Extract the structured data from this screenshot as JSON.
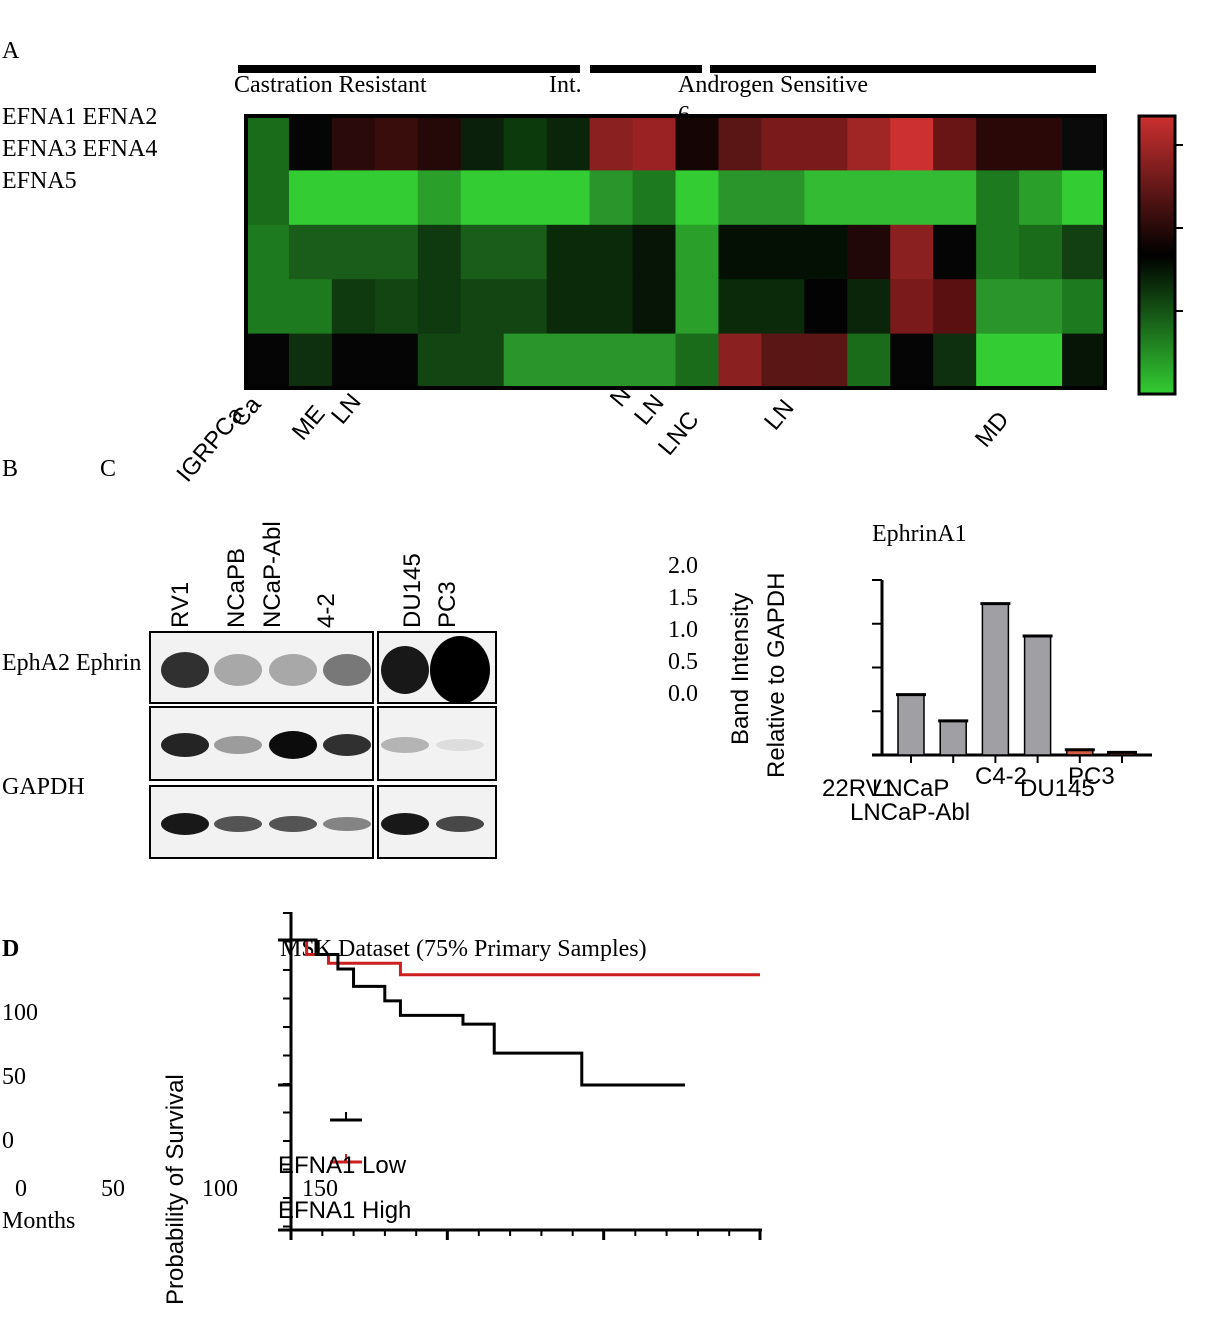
{
  "panel_labels": [
    "A",
    "B",
    "C",
    "D"
  ],
  "heatmap": {
    "groups": [
      "Castration Resistant",
      "Int.",
      "Androgen Sensitive"
    ],
    "group_note": "6",
    "gene_labels": [
      "EFNA1 EFNA2",
      "EFNA3 EFNA4",
      "EFNA5"
    ],
    "sample_labels": [
      "IGRPCa",
      "Ca",
      "ME",
      "LN",
      "N",
      "LN",
      "LNC",
      "LN",
      "MD"
    ],
    "colors": [
      [
        "#1a6b1a",
        "#050505",
        "#2a0a0a",
        "#3a0d0d",
        "#250808",
        "#0a200a",
        "#0d3a0d",
        "#0a250a",
        "#8a2020",
        "#9a2222",
        "#150505",
        "#5a1515",
        "#7a1a1a",
        "#7a1a1a",
        "#a02525",
        "#cc3030",
        "#6a1515",
        "#2a0808",
        "#2a0808",
        "#0a0a0a"
      ],
      [
        "#1a6b1a",
        "#33cc33",
        "#33cc33",
        "#33cc33",
        "#2aa02a",
        "#33cc33",
        "#33cc33",
        "#33cc33",
        "#2a952a",
        "#1e7a1e",
        "#33cc33",
        "#2a952a",
        "#2a952a",
        "#33bb33",
        "#33bb33",
        "#33bb33",
        "#33bb33",
        "#1e7a1e",
        "#2aa02a",
        "#33cc33"
      ],
      [
        "#1e7a1e",
        "#1a5c1a",
        "#1a5c1a",
        "#1a5c1a",
        "#0f3a0f",
        "#1a5c1a",
        "#1a5c1a",
        "#0a2a0a",
        "#0a2a0a",
        "#061506",
        "#2aa02a",
        "#051005",
        "#051005",
        "#051005",
        "#200808",
        "#8a2020",
        "#050505",
        "#1e7a1e",
        "#1a6b1a",
        "#124012"
      ],
      [
        "#1e7a1e",
        "#1e7a1e",
        "#0f3a0f",
        "#124512",
        "#0f3a0f",
        "#124512",
        "#124512",
        "#0a2a0a",
        "#0a2a0a",
        "#061506",
        "#2aa02a",
        "#0a2a0a",
        "#0a2a0a",
        "#030303",
        "#0a250a",
        "#7a1a1a",
        "#5a1010",
        "#2a952a",
        "#2a952a",
        "#1e7a1e"
      ],
      [
        "#050505",
        "#0f300f",
        "#050505",
        "#050505",
        "#124512",
        "#124512",
        "#2a952a",
        "#2a952a",
        "#2a952a",
        "#2a952a",
        "#1a6b1a",
        "#8a2020",
        "#5a1515",
        "#5a1515",
        "#1a6b1a",
        "#050505",
        "#0f300f",
        "#33cc33",
        "#33cc33",
        "#061506"
      ]
    ]
  },
  "blot": {
    "lanes": [
      "RV1",
      "NCaPB",
      "NCaP-Abl",
      "4-2",
      "DU145",
      "PC3"
    ],
    "rows": [
      "EphA2 Ephrin",
      "GAPDH"
    ]
  },
  "chart_data": [
    {
      "type": "bar",
      "title": "EphrinA1",
      "ylabel": [
        "Band Intensity",
        "Relative to GAPDH"
      ],
      "categories": [
        "22RV1",
        "LNCaP",
        "LNCaP-Abl",
        "C4-2",
        "DU145",
        "PC3"
      ],
      "values": [
        0.69,
        0.39,
        1.73,
        1.36,
        0.06,
        0.03
      ],
      "colors": [
        "#a0a0a4",
        "#a0a0a4",
        "#a0a0a4",
        "#a0a0a4",
        "#d65a44",
        "#d65a44"
      ],
      "ylim": [
        0,
        2
      ],
      "yticks": [
        {
          "value": 2,
          "label": "2.0"
        },
        {
          "value": 1.5,
          "label": "1.5"
        },
        {
          "value": 1,
          "label": "1.0"
        },
        {
          "value": 0.5,
          "label": "0.5"
        },
        {
          "value": 0,
          "label": "0.0"
        }
      ]
    },
    {
      "type": "line",
      "title": "MSK Dataset (75% Primary Samples)",
      "xlabel": "Months",
      "ylabel": "Probability of Survival",
      "step": true,
      "series": [
        {
          "name": "EFNA1 Low",
          "color": "#cc1f1f",
          "x": [
            0,
            5,
            12,
            35,
            150
          ],
          "values": [
            100,
            95,
            92,
            88,
            88
          ]
        },
        {
          "name": "EFNA1 High",
          "color": "#000000",
          "x": [
            0,
            8,
            15,
            20,
            30,
            35,
            55,
            65,
            93,
            126
          ],
          "values": [
            100,
            95,
            90,
            84,
            79,
            74,
            71,
            61,
            50,
            50
          ]
        }
      ],
      "xlim": [
        0,
        150
      ],
      "ylim": [
        0,
        100
      ],
      "xticks": [
        0,
        50,
        100,
        150
      ],
      "yticks": [
        100,
        50,
        0
      ]
    }
  ]
}
